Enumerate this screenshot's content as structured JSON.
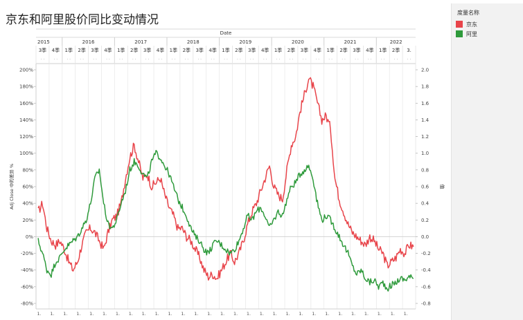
{
  "title": "京东和阿里股价同比变动情况",
  "legend": {
    "title": "度量名称",
    "items": [
      {
        "label": "京东",
        "color": "#e8444a"
      },
      {
        "label": "阿里",
        "color": "#2e9a3b"
      }
    ]
  },
  "chart_data": {
    "type": "line",
    "title": "京东和阿里股价同比变动情况",
    "top_axis_title": "Date",
    "years": [
      "2015",
      "2016",
      "2017",
      "2018",
      "2019",
      "2020",
      "2021",
      "2022"
    ],
    "quarter_labels": [
      "3季",
      "4季",
      "1季",
      "2季",
      "3季",
      "4季",
      "1季",
      "2季",
      "3季",
      "4季",
      "1季",
      "2季",
      "3季",
      "4季",
      "1季",
      "2季",
      "3季",
      "4季",
      "1季",
      "2季",
      "3季",
      "4季",
      "1季",
      "2季",
      "3季",
      "4季",
      "1季",
      "2季",
      "3."
    ],
    "bottom_tick_label": "1.",
    "left_axis": {
      "label": "Adj Close 中的差异 %",
      "ticks": [
        "200%",
        "180%",
        "160%",
        "140%",
        "120%",
        "100%",
        "80%",
        "60%",
        "40%",
        "20%",
        "0%",
        "-20%",
        "-40%",
        "-60%",
        "-80%"
      ],
      "range": [
        -0.8,
        2.0
      ]
    },
    "right_axis": {
      "label": "值",
      "ticks": [
        "2.0",
        "1.8",
        "1.6",
        "1.4",
        "1.2",
        "1.0",
        "0.8",
        "0.6",
        "0.4",
        "0.2",
        "0.0",
        "-0.2",
        "-0.4",
        "-0.6",
        "-0.8"
      ],
      "range": [
        -0.8,
        2.0
      ]
    },
    "x_range": [
      "2015-07",
      "2022-09"
    ],
    "series": [
      {
        "name": "京东",
        "color": "#e8444a",
        "points": [
          [
            "2015-07",
            0.3
          ],
          [
            "2015-08",
            0.4
          ],
          [
            "2015-09",
            0.1
          ],
          [
            "2015-10",
            -0.05
          ],
          [
            "2015-11",
            -0.1
          ],
          [
            "2015-12",
            -0.05
          ],
          [
            "2016-01",
            -0.15
          ],
          [
            "2016-02",
            -0.3
          ],
          [
            "2016-03",
            -0.4
          ],
          [
            "2016-04",
            -0.3
          ],
          [
            "2016-05",
            -0.1
          ],
          [
            "2016-06",
            0.05
          ],
          [
            "2016-07",
            0.1
          ],
          [
            "2016-08",
            0.05
          ],
          [
            "2016-09",
            -0.05
          ],
          [
            "2016-10",
            -0.15
          ],
          [
            "2016-11",
            0.05
          ],
          [
            "2016-12",
            0.2
          ],
          [
            "2017-01",
            0.25
          ],
          [
            "2017-02",
            0.4
          ],
          [
            "2017-03",
            0.7
          ],
          [
            "2017-04",
            0.95
          ],
          [
            "2017-05",
            1.1
          ],
          [
            "2017-06",
            0.9
          ],
          [
            "2017-07",
            0.7
          ],
          [
            "2017-08",
            0.75
          ],
          [
            "2017-09",
            0.6
          ],
          [
            "2017-10",
            0.65
          ],
          [
            "2017-11",
            0.7
          ],
          [
            "2017-12",
            0.5
          ],
          [
            "2018-01",
            0.35
          ],
          [
            "2018-02",
            0.25
          ],
          [
            "2018-03",
            0.1
          ],
          [
            "2018-04",
            0.1
          ],
          [
            "2018-05",
            0.0
          ],
          [
            "2018-06",
            -0.05
          ],
          [
            "2018-07",
            -0.15
          ],
          [
            "2018-08",
            -0.25
          ],
          [
            "2018-09",
            -0.4
          ],
          [
            "2018-10",
            -0.48
          ],
          [
            "2018-11",
            -0.45
          ],
          [
            "2018-12",
            -0.5
          ],
          [
            "2019-01",
            -0.4
          ],
          [
            "2019-02",
            -0.3
          ],
          [
            "2019-03",
            -0.2
          ],
          [
            "2019-04",
            -0.3
          ],
          [
            "2019-05",
            -0.2
          ],
          [
            "2019-06",
            -0.05
          ],
          [
            "2019-07",
            0.15
          ],
          [
            "2019-08",
            0.3
          ],
          [
            "2019-09",
            0.4
          ],
          [
            "2019-10",
            0.55
          ],
          [
            "2019-11",
            0.7
          ],
          [
            "2019-12",
            0.85
          ],
          [
            "2020-01",
            0.6
          ],
          [
            "2020-02",
            0.5
          ],
          [
            "2020-03",
            0.45
          ],
          [
            "2020-04",
            0.8
          ],
          [
            "2020-05",
            1.1
          ],
          [
            "2020-06",
            1.2
          ],
          [
            "2020-07",
            1.5
          ],
          [
            "2020-08",
            1.7
          ],
          [
            "2020-09",
            1.9
          ],
          [
            "2020-10",
            1.8
          ],
          [
            "2020-11",
            1.6
          ],
          [
            "2020-12",
            1.4
          ],
          [
            "2021-01",
            1.45
          ],
          [
            "2021-02",
            1.3
          ],
          [
            "2021-03",
            0.7
          ],
          [
            "2021-04",
            0.45
          ],
          [
            "2021-05",
            0.3
          ],
          [
            "2021-06",
            0.15
          ],
          [
            "2021-07",
            0.05
          ],
          [
            "2021-08",
            0.0
          ],
          [
            "2021-09",
            -0.05
          ],
          [
            "2021-10",
            -0.1
          ],
          [
            "2021-11",
            0.0
          ],
          [
            "2021-12",
            -0.05
          ],
          [
            "2022-01",
            -0.15
          ],
          [
            "2022-02",
            -0.2
          ],
          [
            "2022-03",
            -0.35
          ],
          [
            "2022-04",
            -0.3
          ],
          [
            "2022-05",
            -0.25
          ],
          [
            "2022-06",
            -0.15
          ],
          [
            "2022-07",
            -0.2
          ],
          [
            "2022-08",
            -0.1
          ],
          [
            "2022-09",
            -0.12
          ]
        ]
      },
      {
        "name": "阿里",
        "color": "#2e9a3b",
        "points": [
          [
            "2015-07",
            -0.05
          ],
          [
            "2015-08",
            -0.2
          ],
          [
            "2015-09",
            -0.4
          ],
          [
            "2015-10",
            -0.45
          ],
          [
            "2015-11",
            -0.3
          ],
          [
            "2015-12",
            -0.25
          ],
          [
            "2016-01",
            -0.15
          ],
          [
            "2016-02",
            -0.1
          ],
          [
            "2016-03",
            -0.05
          ],
          [
            "2016-04",
            0.0
          ],
          [
            "2016-05",
            0.1
          ],
          [
            "2016-06",
            0.2
          ],
          [
            "2016-07",
            0.4
          ],
          [
            "2016-08",
            0.7
          ],
          [
            "2016-09",
            0.8
          ],
          [
            "2016-10",
            0.4
          ],
          [
            "2016-11",
            0.15
          ],
          [
            "2016-12",
            0.1
          ],
          [
            "2017-01",
            0.2
          ],
          [
            "2017-02",
            0.4
          ],
          [
            "2017-03",
            0.55
          ],
          [
            "2017-04",
            0.8
          ],
          [
            "2017-05",
            0.9
          ],
          [
            "2017-06",
            0.85
          ],
          [
            "2017-07",
            0.75
          ],
          [
            "2017-08",
            0.7
          ],
          [
            "2017-09",
            0.9
          ],
          [
            "2017-10",
            1.0
          ],
          [
            "2017-11",
            0.95
          ],
          [
            "2017-12",
            0.85
          ],
          [
            "2018-01",
            0.75
          ],
          [
            "2018-02",
            0.6
          ],
          [
            "2018-03",
            0.45
          ],
          [
            "2018-04",
            0.35
          ],
          [
            "2018-05",
            0.25
          ],
          [
            "2018-06",
            0.1
          ],
          [
            "2018-07",
            0.0
          ],
          [
            "2018-08",
            -0.05
          ],
          [
            "2018-09",
            -0.15
          ],
          [
            "2018-10",
            -0.2
          ],
          [
            "2018-11",
            -0.1
          ],
          [
            "2018-12",
            -0.05
          ],
          [
            "2019-01",
            -0.1
          ],
          [
            "2019-02",
            -0.15
          ],
          [
            "2019-03",
            -0.2
          ],
          [
            "2019-04",
            -0.15
          ],
          [
            "2019-05",
            -0.05
          ],
          [
            "2019-06",
            0.1
          ],
          [
            "2019-07",
            0.25
          ],
          [
            "2019-08",
            0.2
          ],
          [
            "2019-09",
            0.3
          ],
          [
            "2019-10",
            0.35
          ],
          [
            "2019-11",
            0.25
          ],
          [
            "2019-12",
            0.1
          ],
          [
            "2020-01",
            0.2
          ],
          [
            "2020-02",
            0.3
          ],
          [
            "2020-03",
            0.25
          ],
          [
            "2020-04",
            0.45
          ],
          [
            "2020-05",
            0.6
          ],
          [
            "2020-06",
            0.65
          ],
          [
            "2020-07",
            0.75
          ],
          [
            "2020-08",
            0.8
          ],
          [
            "2020-09",
            0.85
          ],
          [
            "2020-10",
            0.7
          ],
          [
            "2020-11",
            0.4
          ],
          [
            "2020-12",
            0.2
          ],
          [
            "2021-01",
            0.25
          ],
          [
            "2021-02",
            0.2
          ],
          [
            "2021-03",
            0.1
          ],
          [
            "2021-04",
            0.0
          ],
          [
            "2021-05",
            -0.1
          ],
          [
            "2021-06",
            -0.2
          ],
          [
            "2021-07",
            -0.35
          ],
          [
            "2021-08",
            -0.45
          ],
          [
            "2021-09",
            -0.4
          ],
          [
            "2021-10",
            -0.5
          ],
          [
            "2021-11",
            -0.55
          ],
          [
            "2021-12",
            -0.52
          ],
          [
            "2022-01",
            -0.6
          ],
          [
            "2022-02",
            -0.55
          ],
          [
            "2022-03",
            -0.62
          ],
          [
            "2022-04",
            -0.58
          ],
          [
            "2022-05",
            -0.55
          ],
          [
            "2022-06",
            -0.5
          ],
          [
            "2022-07",
            -0.52
          ],
          [
            "2022-08",
            -0.48
          ],
          [
            "2022-09",
            -0.5
          ]
        ]
      }
    ]
  }
}
